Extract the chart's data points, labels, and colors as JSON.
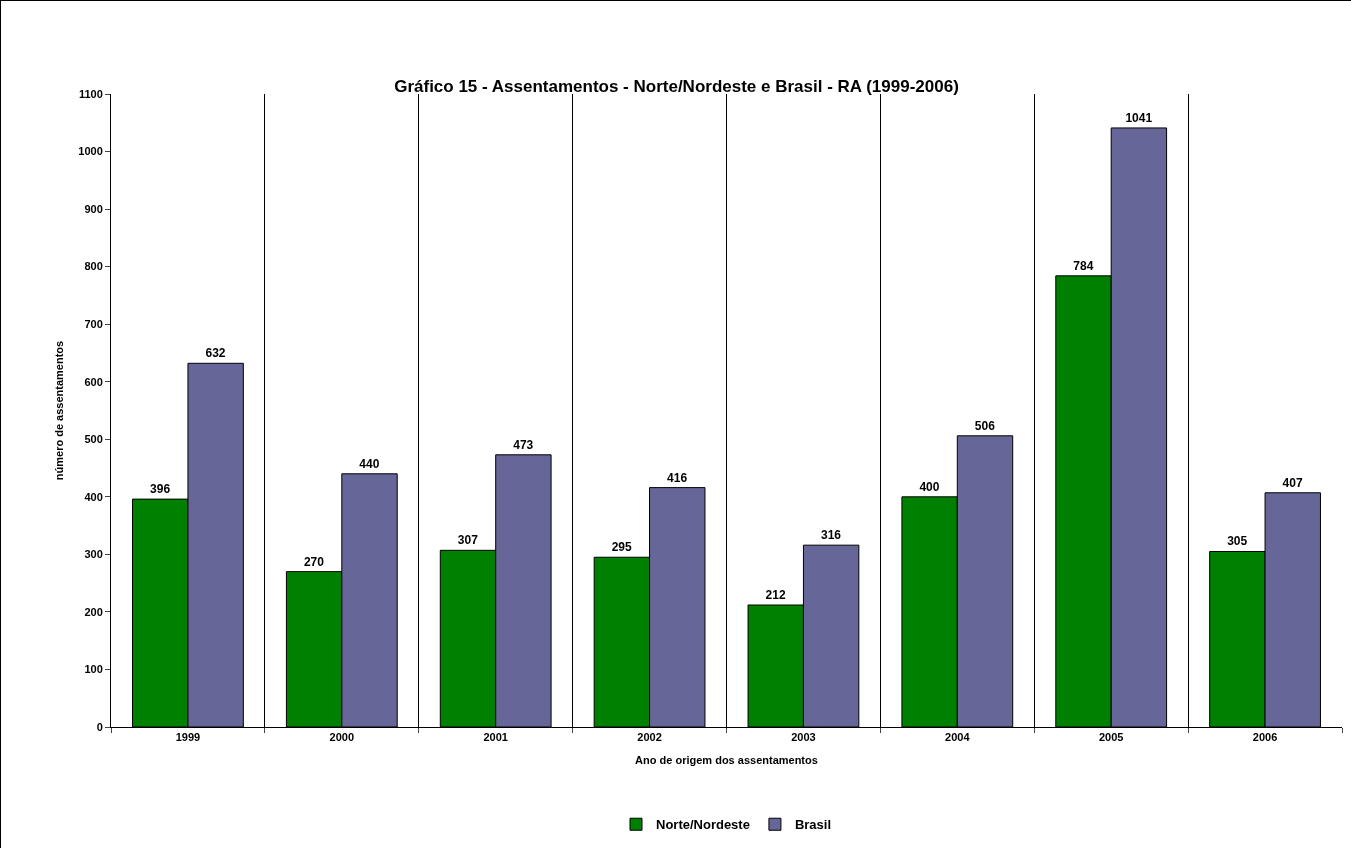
{
  "chart_data": {
    "type": "bar",
    "title": "Gráfico 15 - Assentamentos - Norte/Nordeste e Brasil - RA (1999-2006)",
    "xlabel": "Ano de origem dos assentamentos",
    "ylabel": "número de assentamentos",
    "categories": [
      "1999",
      "2000",
      "2001",
      "2002",
      "2003",
      "2004",
      "2005",
      "2006"
    ],
    "series": [
      {
        "name": "Norte/Nordeste",
        "color": "#008000",
        "values": [
          396,
          270,
          307,
          295,
          212,
          400,
          784,
          305
        ]
      },
      {
        "name": "Brasil",
        "color": "#666699",
        "values": [
          632,
          440,
          473,
          416,
          316,
          506,
          1041,
          407
        ]
      }
    ],
    "ylim": [
      0,
      1100
    ],
    "yticks": [
      0,
      100,
      200,
      300,
      400,
      500,
      600,
      700,
      800,
      900,
      1000,
      1100
    ],
    "grid": "x",
    "legend": "bottom",
    "data_labels": true
  }
}
